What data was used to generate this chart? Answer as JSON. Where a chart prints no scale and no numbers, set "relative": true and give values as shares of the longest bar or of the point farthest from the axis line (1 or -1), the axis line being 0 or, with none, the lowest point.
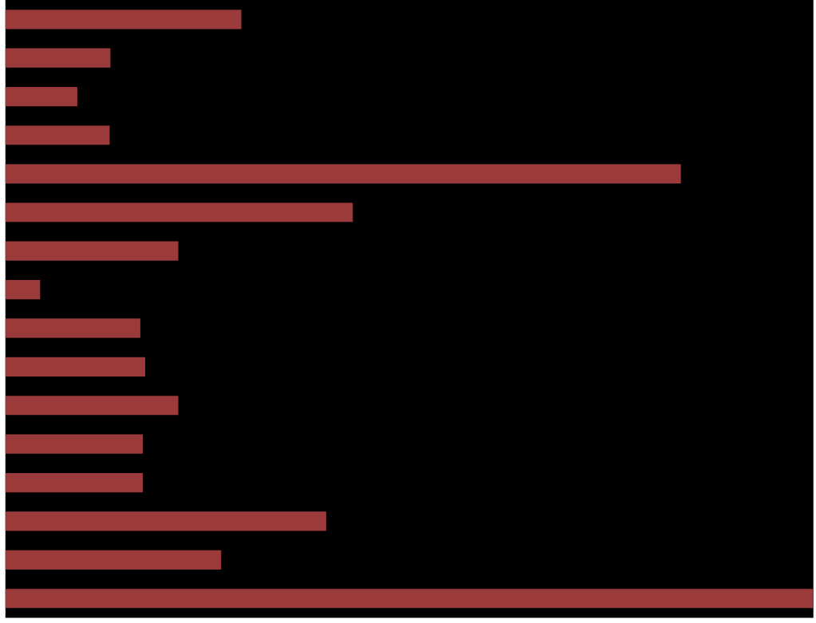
{
  "chart_data": {
    "type": "bar",
    "orientation": "horizontal",
    "relative": true,
    "categories": [
      null,
      null,
      null,
      null,
      null,
      null,
      null,
      null,
      null,
      null,
      null,
      null,
      null,
      null,
      null,
      null
    ],
    "values": [
      0.292,
      0.13,
      0.089,
      0.129,
      0.836,
      0.43,
      0.214,
      0.043,
      0.167,
      0.173,
      0.214,
      0.17,
      0.17,
      0.397,
      0.267,
      1
    ],
    "color": "#9b3a3a"
  }
}
